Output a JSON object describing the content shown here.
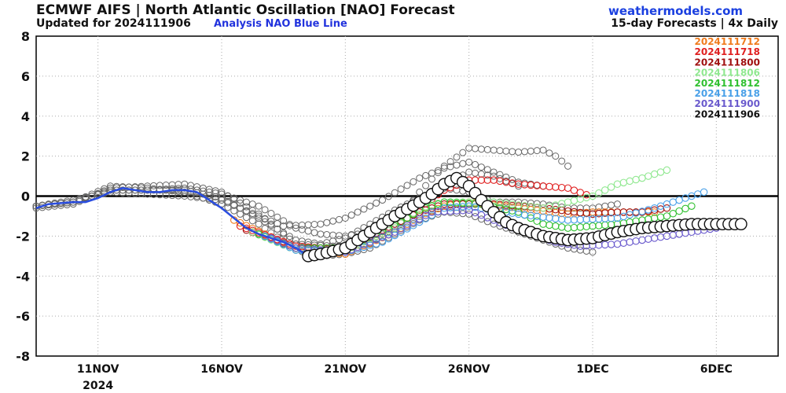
{
  "header": {
    "title": "ECMWF AIFS | North Atlantic Oscillation [NAO] Forecast",
    "updated": "Updated for 2024111906",
    "analysis_note": "Analysis NAO Blue Line",
    "site": "weathermodels.com",
    "subtitle": "15-day Forecasts | 4x Daily"
  },
  "chart_data": {
    "type": "line",
    "title": "ECMWF AIFS | North Atlantic Oscillation [NAO] Forecast",
    "xlabel": "",
    "ylabel": "",
    "x_unit": "days after 2024-11-10 00Z",
    "xlim": [
      -1.5,
      28.5
    ],
    "ylim": [
      -8,
      8
    ],
    "yticks": [
      -8,
      -6,
      -4,
      -2,
      0,
      2,
      4,
      6,
      8
    ],
    "xticks": [
      {
        "x": 1,
        "label": "11NOV",
        "sublabel": "2024"
      },
      {
        "x": 6,
        "label": "16NOV"
      },
      {
        "x": 11,
        "label": "21NOV"
      },
      {
        "x": 16,
        "label": "26NOV"
      },
      {
        "x": 21,
        "label": "1DEC"
      },
      {
        "x": 26,
        "label": "6DEC"
      }
    ],
    "grid": true,
    "zero_line": true,
    "legend": {
      "position": "top-right",
      "entries": [
        {
          "label": "2024111712",
          "color": "#f07c1e"
        },
        {
          "label": "2024111718",
          "color": "#e02020"
        },
        {
          "label": "2024111800",
          "color": "#a01010"
        },
        {
          "label": "2024111806",
          "color": "#90e890"
        },
        {
          "label": "2024111812",
          "color": "#30c030"
        },
        {
          "label": "2024111818",
          "color": "#4aa0e8"
        },
        {
          "label": "2024111900",
          "color": "#6a5acd"
        },
        {
          "label": "2024111906",
          "color": "#111111"
        }
      ]
    },
    "analysis": {
      "name": "Analysis NAO",
      "color": "#2a4de0",
      "points": [
        [
          -1.5,
          -0.6
        ],
        [
          -1,
          -0.4
        ],
        [
          0,
          -0.3
        ],
        [
          0.5,
          -0.3
        ],
        [
          1,
          -0.1
        ],
        [
          1.5,
          0.2
        ],
        [
          2,
          0.4
        ],
        [
          2.5,
          0.3
        ],
        [
          3,
          0.2
        ],
        [
          3.5,
          0.2
        ],
        [
          4,
          0.3
        ],
        [
          4.5,
          0.3
        ],
        [
          5,
          0.2
        ],
        [
          5.5,
          -0.2
        ],
        [
          6,
          -0.6
        ],
        [
          6.5,
          -1.1
        ],
        [
          7,
          -1.6
        ],
        [
          7.5,
          -1.9
        ],
        [
          8,
          -2.1
        ],
        [
          8.5,
          -2.3
        ],
        [
          9,
          -2.6
        ],
        [
          9.5,
          -3.0
        ]
      ]
    },
    "forecasts": [
      {
        "name": "2024111712",
        "color": "#f07c1e",
        "points": [
          [
            6.5,
            -1.2
          ],
          [
            9,
            -2.6
          ],
          [
            11,
            -2.9
          ],
          [
            13,
            -1.8
          ],
          [
            14,
            -1.0
          ],
          [
            15,
            -0.5
          ],
          [
            16,
            -0.3
          ],
          [
            18,
            -0.6
          ],
          [
            20,
            -0.9
          ],
          [
            21,
            -0.8
          ],
          [
            22,
            -0.8
          ],
          [
            23.5,
            -0.8
          ]
        ]
      },
      {
        "name": "2024111718",
        "color": "#e02020",
        "points": [
          [
            6.75,
            -1.5
          ],
          [
            9,
            -2.5
          ],
          [
            11,
            -2.7
          ],
          [
            13,
            -1.6
          ],
          [
            14,
            -0.6
          ],
          [
            15,
            0.3
          ],
          [
            16,
            0.8
          ],
          [
            17,
            0.8
          ],
          [
            18,
            0.6
          ],
          [
            20,
            0.4
          ],
          [
            20.9,
            0.0
          ]
        ]
      },
      {
        "name": "2024111800",
        "color": "#a01010",
        "points": [
          [
            7,
            -1.7
          ],
          [
            9,
            -2.6
          ],
          [
            11,
            -2.6
          ],
          [
            13,
            -1.4
          ],
          [
            14,
            -0.8
          ],
          [
            15,
            -0.4
          ],
          [
            17,
            -0.4
          ],
          [
            19,
            -0.6
          ],
          [
            21,
            -0.9
          ],
          [
            22,
            -0.8
          ],
          [
            23,
            -0.8
          ],
          [
            24,
            -0.6
          ]
        ]
      },
      {
        "name": "2024111806",
        "color": "#90e890",
        "points": [
          [
            7.25,
            -1.8
          ],
          [
            9,
            -2.7
          ],
          [
            11,
            -2.7
          ],
          [
            13,
            -1.6
          ],
          [
            14,
            -0.6
          ],
          [
            15,
            -0.3
          ],
          [
            17,
            -0.3
          ],
          [
            19,
            -0.6
          ],
          [
            21,
            0.0
          ],
          [
            22,
            0.6
          ],
          [
            23,
            0.9
          ],
          [
            24,
            1.3
          ]
        ]
      },
      {
        "name": "2024111812",
        "color": "#30c030",
        "points": [
          [
            7.5,
            -1.9
          ],
          [
            9,
            -2.6
          ],
          [
            11,
            -2.6
          ],
          [
            13,
            -1.5
          ],
          [
            14,
            -0.7
          ],
          [
            15,
            -0.3
          ],
          [
            16.5,
            -0.4
          ],
          [
            18,
            -0.8
          ],
          [
            19,
            -1.4
          ],
          [
            20,
            -1.6
          ],
          [
            22,
            -1.4
          ],
          [
            24,
            -1.0
          ],
          [
            25,
            -0.5
          ]
        ]
      },
      {
        "name": "2024111818",
        "color": "#4aa0e8",
        "points": [
          [
            7.75,
            -2.0
          ],
          [
            9,
            -2.7
          ],
          [
            11,
            -2.8
          ],
          [
            12.5,
            -2.3
          ],
          [
            14,
            -1.3
          ],
          [
            15,
            -0.6
          ],
          [
            16,
            -0.5
          ],
          [
            18,
            -0.9
          ],
          [
            20,
            -1.2
          ],
          [
            22,
            -1.1
          ],
          [
            23.5,
            -0.6
          ],
          [
            25.5,
            0.2
          ]
        ]
      },
      {
        "name": "2024111900",
        "color": "#6a5acd",
        "points": [
          [
            8,
            -2.1
          ],
          [
            9,
            -2.6
          ],
          [
            11,
            -2.8
          ],
          [
            13,
            -1.8
          ],
          [
            14.5,
            -0.8
          ],
          [
            16,
            -0.7
          ],
          [
            17,
            -1.2
          ],
          [
            18,
            -1.7
          ],
          [
            19.5,
            -2.3
          ],
          [
            20.5,
            -2.5
          ],
          [
            22,
            -2.4
          ],
          [
            24,
            -2.0
          ],
          [
            26,
            -1.6
          ]
        ]
      }
    ],
    "current": {
      "name": "2024111906",
      "color": "#111111",
      "points": [
        [
          9.5,
          -3.0
        ],
        [
          10,
          -2.9
        ],
        [
          11,
          -2.6
        ],
        [
          12,
          -1.8
        ],
        [
          13,
          -1.0
        ],
        [
          14,
          -0.3
        ],
        [
          14.5,
          0.1
        ],
        [
          15,
          0.6
        ],
        [
          15.5,
          0.9
        ],
        [
          16,
          0.5
        ],
        [
          16.5,
          -0.2
        ],
        [
          17,
          -0.8
        ],
        [
          17.5,
          -1.3
        ],
        [
          18,
          -1.6
        ],
        [
          19,
          -2.0
        ],
        [
          20,
          -2.2
        ],
        [
          21,
          -2.1
        ],
        [
          22,
          -1.8
        ],
        [
          23,
          -1.6
        ],
        [
          24,
          -1.5
        ],
        [
          25,
          -1.4
        ],
        [
          26,
          -1.4
        ],
        [
          27,
          -1.4
        ]
      ]
    },
    "ensemble_grey": [
      [
        [
          -1.5,
          -0.5
        ],
        [
          0,
          -0.3
        ],
        [
          1.5,
          0.3
        ],
        [
          3,
          0.3
        ],
        [
          4.5,
          0.4
        ],
        [
          6,
          0.1
        ],
        [
          7.5,
          -0.5
        ],
        [
          9,
          -1.6
        ],
        [
          10,
          -1.9
        ],
        [
          11,
          -2.0
        ],
        [
          12,
          -1.8
        ],
        [
          13,
          -1.0
        ],
        [
          14,
          -0.2
        ],
        [
          15,
          0.6
        ],
        [
          16,
          1.2
        ],
        [
          17,
          1.0
        ],
        [
          18,
          0.5
        ]
      ],
      [
        [
          -1.5,
          -0.6
        ],
        [
          0,
          -0.4
        ],
        [
          1.5,
          0.4
        ],
        [
          3,
          0.5
        ],
        [
          4.5,
          0.6
        ],
        [
          6,
          0.2
        ],
        [
          7.5,
          -0.9
        ],
        [
          9,
          -2.4
        ],
        [
          10.5,
          -2.5
        ],
        [
          12,
          -2.4
        ],
        [
          13,
          -1.4
        ],
        [
          14,
          0.2
        ],
        [
          15,
          1.5
        ],
        [
          16,
          2.4
        ],
        [
          17,
          2.3
        ],
        [
          18,
          2.2
        ],
        [
          19,
          2.3
        ],
        [
          19.5,
          2.0
        ],
        [
          20,
          1.5
        ]
      ],
      [
        [
          -1.5,
          -0.5
        ],
        [
          0,
          -0.2
        ],
        [
          1.5,
          0.2
        ],
        [
          3,
          0.1
        ],
        [
          4.5,
          0.0
        ],
        [
          6,
          -0.2
        ],
        [
          7.5,
          -1.0
        ],
        [
          8.5,
          -1.5
        ],
        [
          10,
          -1.4
        ],
        [
          11,
          -1.1
        ],
        [
          12.5,
          -0.2
        ],
        [
          14,
          0.9
        ],
        [
          15,
          1.4
        ],
        [
          16,
          1.7
        ],
        [
          17,
          1.2
        ],
        [
          18,
          0.7
        ],
        [
          19,
          0.5
        ]
      ],
      [
        [
          -1.5,
          -0.5
        ],
        [
          0,
          -0.3
        ],
        [
          1.5,
          0.5
        ],
        [
          3,
          0.4
        ],
        [
          4.5,
          0.2
        ],
        [
          6,
          -0.4
        ],
        [
          7.5,
          -1.4
        ],
        [
          9,
          -2.7
        ],
        [
          10,
          -3.0
        ],
        [
          11,
          -2.9
        ],
        [
          12,
          -2.6
        ],
        [
          13,
          -1.9
        ],
        [
          14,
          -1.2
        ],
        [
          15,
          -0.8
        ],
        [
          16,
          -0.9
        ],
        [
          17,
          -1.4
        ],
        [
          18,
          -1.8
        ],
        [
          19,
          -2.2
        ],
        [
          20,
          -2.6
        ],
        [
          21,
          -2.8
        ]
      ],
      [
        [
          -1.5,
          -0.5
        ],
        [
          0,
          -0.3
        ],
        [
          1.5,
          0.3
        ],
        [
          3,
          0.3
        ],
        [
          4.5,
          0.3
        ],
        [
          6,
          -0.1
        ],
        [
          7.5,
          -1.1
        ],
        [
          9,
          -2.2
        ],
        [
          10,
          -2.4
        ],
        [
          11,
          -2.1
        ],
        [
          12,
          -1.4
        ],
        [
          13,
          -0.7
        ],
        [
          14,
          -0.1
        ],
        [
          15,
          0.4
        ],
        [
          16,
          0.2
        ],
        [
          17,
          -0.3
        ],
        [
          18,
          -0.3
        ],
        [
          19,
          -0.4
        ],
        [
          20,
          -0.6
        ],
        [
          21,
          -0.6
        ],
        [
          22,
          -0.4
        ]
      ]
    ]
  }
}
